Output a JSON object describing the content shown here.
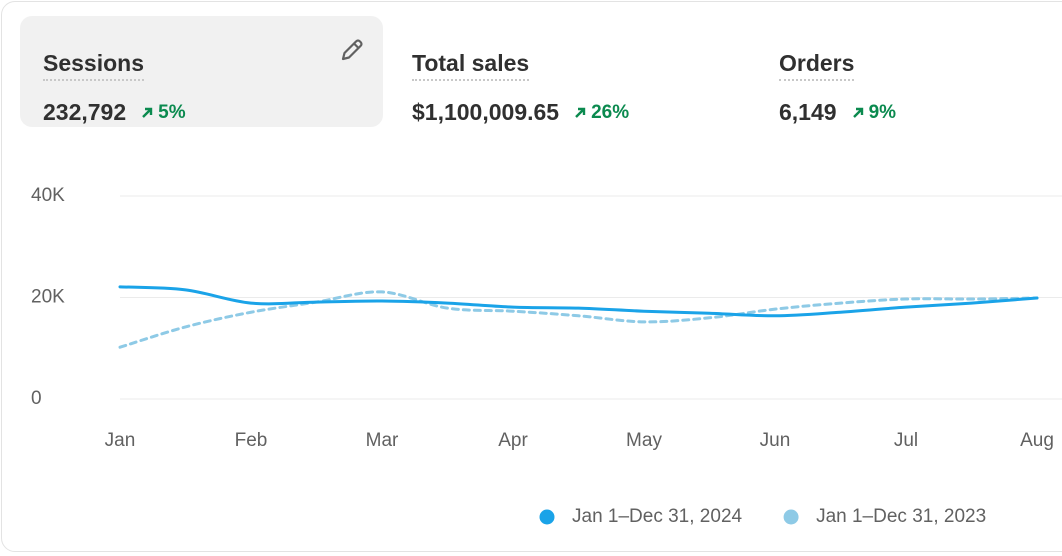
{
  "metrics": [
    {
      "title": "Sessions",
      "value": "232,792",
      "change": "5%"
    },
    {
      "title": "Total sales",
      "value": "$1,100,009.65",
      "change": "26%"
    },
    {
      "title": "Orders",
      "value": "6,149",
      "change": "9%"
    }
  ],
  "chart_data": {
    "type": "line",
    "categories": [
      "Jan",
      null,
      "Feb",
      null,
      "Mar",
      null,
      "Apr",
      null,
      "May",
      null,
      "Jun",
      null,
      "Jul",
      null,
      "Aug"
    ],
    "series": [
      {
        "name": "Jan 1–Dec 31, 2024",
        "color": "#1aa3e8",
        "line_style": "solid",
        "values": [
          22100,
          21500,
          18900,
          19100,
          19300,
          18900,
          18100,
          17900,
          17300,
          16900,
          16400,
          17100,
          18100,
          18900,
          19900
        ]
      },
      {
        "name": "Jan 1–Dec 31, 2023",
        "color": "#8ecae6",
        "line_style": "dashed",
        "values": [
          10200,
          14200,
          17100,
          19100,
          21100,
          17900,
          17300,
          16400,
          15200,
          16000,
          17700,
          18900,
          19700,
          19700,
          19900
        ]
      }
    ],
    "ylim": [
      0,
      40000
    ],
    "yticks": [
      0,
      {
        "value": 20000,
        "label": "20K"
      },
      {
        "value": 40000,
        "label": "40K"
      }
    ],
    "grid": true
  }
}
